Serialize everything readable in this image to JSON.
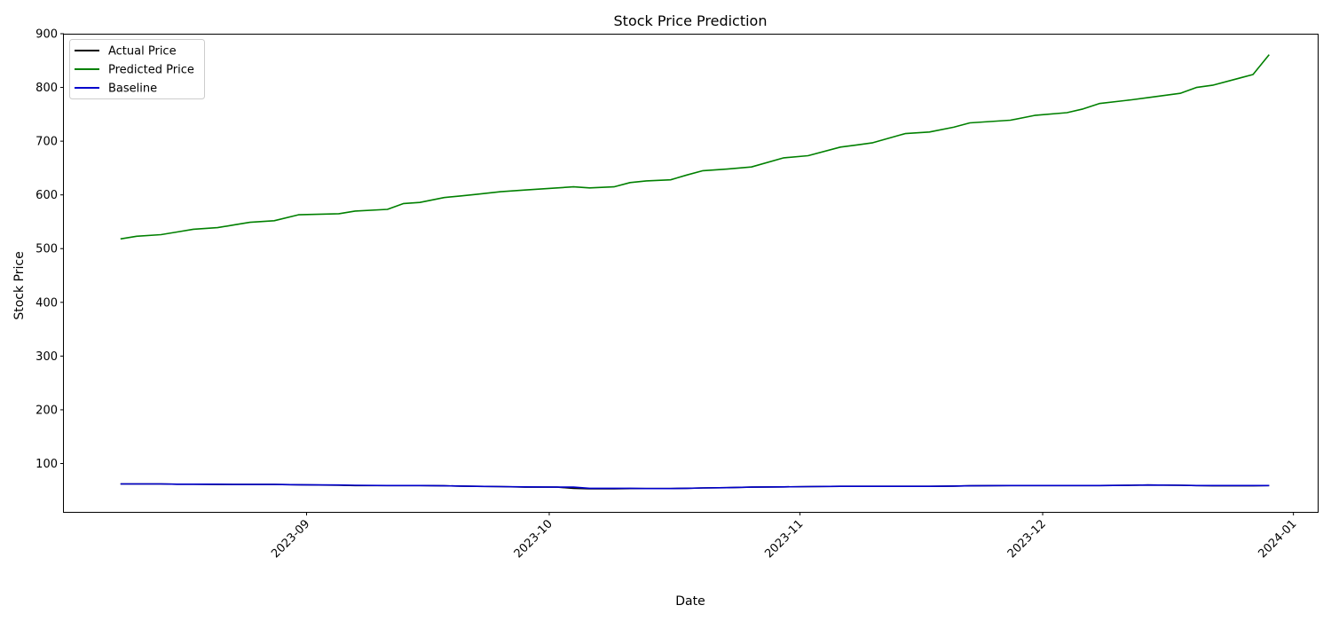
{
  "chart_data": {
    "type": "line",
    "title": "Stock Price Prediction",
    "xlabel": "Date",
    "ylabel": "Stock Price",
    "xlim": [
      "2023-08-02",
      "2024-01-04"
    ],
    "ylim": [
      10,
      900
    ],
    "x_ticks": [
      "2023-09",
      "2023-10",
      "2023-11",
      "2023-12",
      "2024-01"
    ],
    "x_tick_dates": [
      "2023-09-01",
      "2023-10-01",
      "2023-11-01",
      "2023-12-01",
      "2024-01-01"
    ],
    "y_ticks": [
      100,
      200,
      300,
      400,
      500,
      600,
      700,
      800,
      900
    ],
    "grid": false,
    "legend": {
      "placement": "top-left"
    },
    "x": [
      "2023-08-09",
      "2023-08-11",
      "2023-08-14",
      "2023-08-16",
      "2023-08-18",
      "2023-08-21",
      "2023-08-23",
      "2023-08-25",
      "2023-08-28",
      "2023-08-31",
      "2023-09-05",
      "2023-09-07",
      "2023-09-11",
      "2023-09-13",
      "2023-09-15",
      "2023-09-18",
      "2023-09-20",
      "2023-09-22",
      "2023-09-25",
      "2023-09-28",
      "2023-10-02",
      "2023-10-04",
      "2023-10-06",
      "2023-10-09",
      "2023-10-11",
      "2023-10-13",
      "2023-10-16",
      "2023-10-18",
      "2023-10-20",
      "2023-10-23",
      "2023-10-26",
      "2023-10-30",
      "2023-11-02",
      "2023-11-06",
      "2023-11-08",
      "2023-11-10",
      "2023-11-14",
      "2023-11-17",
      "2023-11-20",
      "2023-11-22",
      "2023-11-27",
      "2023-11-30",
      "2023-12-04",
      "2023-12-06",
      "2023-12-08",
      "2023-12-12",
      "2023-12-14",
      "2023-12-18",
      "2023-12-20",
      "2023-12-22",
      "2023-12-27",
      "2023-12-29"
    ],
    "series": [
      {
        "name": "Actual Price",
        "color": "#000000",
        "values": [
          62,
          62,
          62,
          61.5,
          61.5,
          61,
          61,
          61,
          61,
          60.5,
          59.5,
          59,
          59,
          59,
          59,
          58.5,
          58,
          57.5,
          57,
          56,
          56,
          54,
          53,
          53,
          53.5,
          53.5,
          53.5,
          54,
          54.5,
          55,
          56,
          56.5,
          57,
          57.5,
          57.5,
          57.5,
          57.5,
          57.5,
          58,
          58.5,
          59,
          59,
          59,
          59,
          59,
          59.5,
          60,
          59.5,
          59,
          58.5,
          58.5,
          59
        ]
      },
      {
        "name": "Predicted Price",
        "color": "#008000",
        "values": [
          518,
          523,
          526,
          531,
          536,
          539,
          544,
          549,
          552,
          563,
          565,
          570,
          573,
          584,
          586,
          595,
          598,
          601,
          606,
          609,
          613,
          615,
          613,
          615,
          623,
          626,
          628,
          637,
          645,
          648,
          652,
          669,
          673,
          689,
          693,
          697,
          714,
          717,
          726,
          734,
          739,
          748,
          753,
          760,
          770,
          777,
          781,
          789,
          800,
          804,
          824,
          861
        ]
      },
      {
        "name": "Baseline",
        "color": "#0000cc",
        "values": [
          62,
          62,
          62,
          61.5,
          61.5,
          61.5,
          61,
          61,
          61,
          60.5,
          60,
          59.5,
          59,
          59,
          59,
          58.5,
          58,
          57.5,
          57,
          56.5,
          56,
          56,
          54,
          54,
          54,
          53.5,
          53.5,
          54,
          54.5,
          55,
          56,
          56.5,
          57,
          57.5,
          57.5,
          57.5,
          57.5,
          57.5,
          58,
          58.5,
          59,
          59,
          59,
          59,
          59,
          59.5,
          60,
          59.5,
          59,
          59,
          59,
          59
        ]
      }
    ]
  }
}
